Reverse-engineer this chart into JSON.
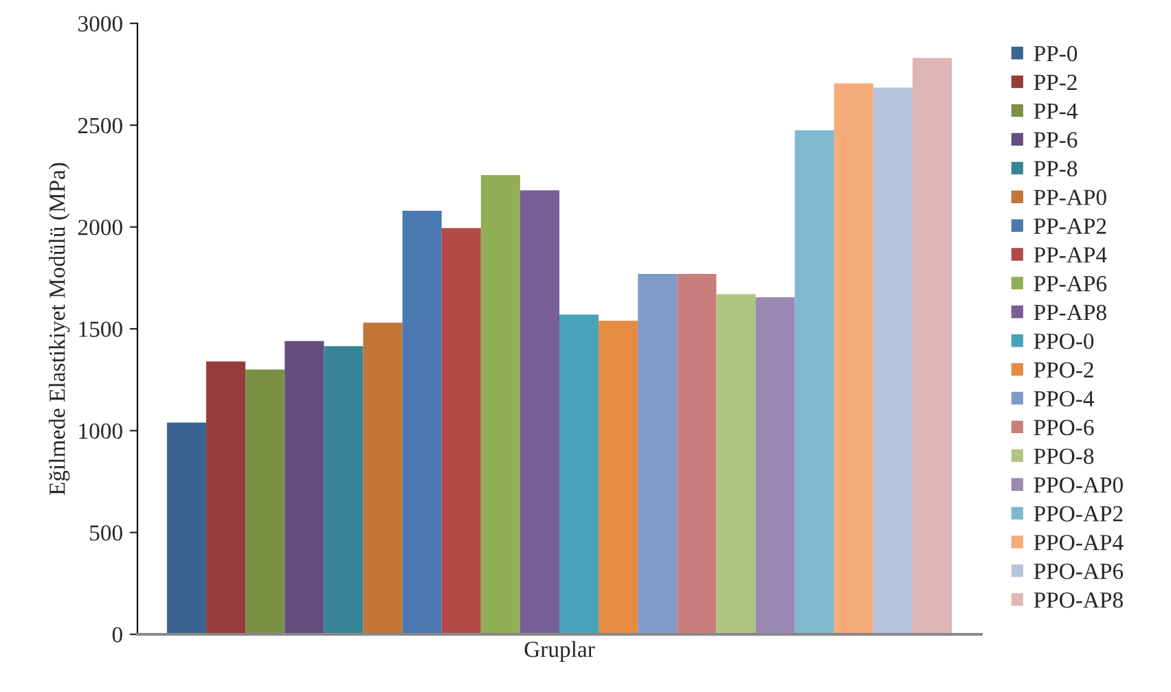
{
  "chart_data": {
    "type": "bar",
    "ylabel": "Eğilmede Elastikiyet Modülü (MPa)",
    "categories": [
      "Gruplar"
    ],
    "ylim": [
      0,
      3000
    ],
    "yticks": [
      0,
      500,
      1000,
      1500,
      2000,
      2500,
      3000
    ],
    "grid": false,
    "legend": "right",
    "series": [
      {
        "name": "PP-0",
        "color": "#3b6394",
        "values": [
          1040
        ]
      },
      {
        "name": "PP-2",
        "color": "#963c3b",
        "values": [
          1340
        ]
      },
      {
        "name": "PP-4",
        "color": "#7a9143",
        "values": [
          1300
        ]
      },
      {
        "name": "PP-6",
        "color": "#634e7e",
        "values": [
          1440
        ]
      },
      {
        "name": "PP-8",
        "color": "#388496",
        "values": [
          1415
        ]
      },
      {
        "name": "PP-AP0",
        "color": "#c27535",
        "values": [
          1530
        ]
      },
      {
        "name": "PP-AP2",
        "color": "#4a78b0",
        "values": [
          2080
        ]
      },
      {
        "name": "PP-AP4",
        "color": "#b24a48",
        "values": [
          1995
        ]
      },
      {
        "name": "PP-AP6",
        "color": "#92ae55",
        "values": [
          2255
        ]
      },
      {
        "name": "PP-AP8",
        "color": "#785f97",
        "values": [
          2180
        ]
      },
      {
        "name": "PPO-0",
        "color": "#47a2ba",
        "values": [
          1570
        ]
      },
      {
        "name": "PPO-2",
        "color": "#e68b42",
        "values": [
          1540
        ]
      },
      {
        "name": "PPO-4",
        "color": "#7f9bc7",
        "values": [
          1770
        ]
      },
      {
        "name": "PPO-6",
        "color": "#c97d7c",
        "values": [
          1770
        ]
      },
      {
        "name": "PPO-8",
        "color": "#aec584",
        "values": [
          1670
        ]
      },
      {
        "name": "PPO-AP0",
        "color": "#9b89b3",
        "values": [
          1655
        ]
      },
      {
        "name": "PPO-AP2",
        "color": "#7fb9d0",
        "values": [
          2475
        ]
      },
      {
        "name": "PPO-AP4",
        "color": "#f6ab7a",
        "values": [
          2705
        ]
      },
      {
        "name": "PPO-AP6",
        "color": "#b5c4dd",
        "values": [
          2685
        ]
      },
      {
        "name": "PPO-AP8",
        "color": "#dfb5b5",
        "values": [
          2830
        ]
      }
    ]
  }
}
